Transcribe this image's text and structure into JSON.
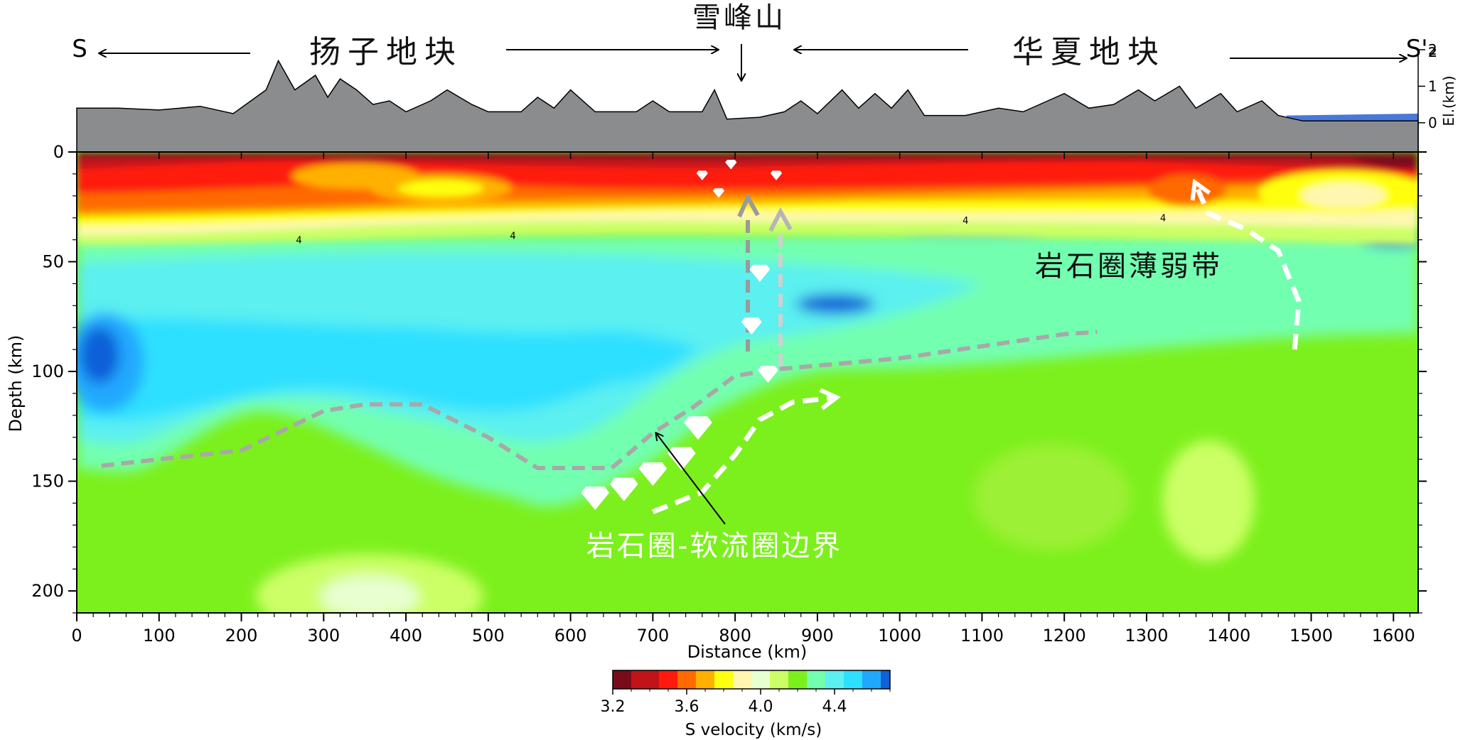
{
  "chart_data": {
    "type": "heatmap",
    "xlabel": "Distance (km)",
    "ylabel": "Depth (km)",
    "xlim": [
      0,
      1630
    ],
    "ylim": [
      210,
      0
    ],
    "x_ticks": [
      "0",
      "100",
      "200",
      "300",
      "400",
      "500",
      "600",
      "700",
      "800",
      "900",
      "1000",
      "1100",
      "1200",
      "1300",
      "1400",
      "1500",
      "1600"
    ],
    "y_ticks": [
      "0",
      "50",
      "100",
      "150",
      "200"
    ],
    "elevation_axis": {
      "label": "El.(km)",
      "ticks": [
        "2",
        "1",
        "0"
      ],
      "ylim": [
        -0.8,
        2
      ]
    },
    "elevation_profile": [
      [
        0,
        0.4
      ],
      [
        50,
        0.4
      ],
      [
        100,
        0.35
      ],
      [
        150,
        0.45
      ],
      [
        190,
        0.25
      ],
      [
        230,
        0.9
      ],
      [
        245,
        1.7
      ],
      [
        265,
        0.9
      ],
      [
        290,
        1.3
      ],
      [
        305,
        0.7
      ],
      [
        320,
        1.2
      ],
      [
        340,
        0.9
      ],
      [
        360,
        0.5
      ],
      [
        380,
        0.6
      ],
      [
        400,
        0.3
      ],
      [
        430,
        0.6
      ],
      [
        450,
        0.9
      ],
      [
        480,
        0.5
      ],
      [
        500,
        0.3
      ],
      [
        540,
        0.3
      ],
      [
        560,
        0.7
      ],
      [
        580,
        0.4
      ],
      [
        600,
        0.9
      ],
      [
        630,
        0.3
      ],
      [
        680,
        0.3
      ],
      [
        700,
        0.6
      ],
      [
        720,
        0.3
      ],
      [
        760,
        0.3
      ],
      [
        775,
        0.9
      ],
      [
        790,
        0.1
      ],
      [
        830,
        0.15
      ],
      [
        860,
        0.3
      ],
      [
        880,
        0.6
      ],
      [
        900,
        0.25
      ],
      [
        930,
        0.9
      ],
      [
        950,
        0.4
      ],
      [
        970,
        0.8
      ],
      [
        990,
        0.4
      ],
      [
        1010,
        0.9
      ],
      [
        1030,
        0.2
      ],
      [
        1080,
        0.2
      ],
      [
        1120,
        0.4
      ],
      [
        1150,
        0.3
      ],
      [
        1180,
        0.6
      ],
      [
        1200,
        0.8
      ],
      [
        1230,
        0.4
      ],
      [
        1260,
        0.5
      ],
      [
        1290,
        0.9
      ],
      [
        1310,
        0.6
      ],
      [
        1340,
        1.0
      ],
      [
        1360,
        0.4
      ],
      [
        1390,
        0.8
      ],
      [
        1410,
        0.3
      ],
      [
        1440,
        0.6
      ],
      [
        1460,
        0.2
      ],
      [
        1490,
        0.05
      ],
      [
        1560,
        0.05
      ],
      [
        1630,
        0.05
      ]
    ],
    "colorbar": {
      "label": "S velocity (km/s)",
      "ticks": [
        "3.2",
        "3.6",
        "4.0",
        "4.4"
      ],
      "range": [
        3.2,
        4.7
      ],
      "stops": [
        {
          "v": 3.2,
          "color": "#7a0c1a"
        },
        {
          "v": 3.3,
          "color": "#c0141a"
        },
        {
          "v": 3.45,
          "color": "#ff1a0d"
        },
        {
          "v": 3.55,
          "color": "#ff6a00"
        },
        {
          "v": 3.65,
          "color": "#ffb000"
        },
        {
          "v": 3.75,
          "color": "#ffff10"
        },
        {
          "v": 3.85,
          "color": "#fff7b0"
        },
        {
          "v": 3.95,
          "color": "#e8ffd0"
        },
        {
          "v": 4.05,
          "color": "#ccff66"
        },
        {
          "v": 4.15,
          "color": "#7cf01c"
        },
        {
          "v": 4.25,
          "color": "#73ffb0"
        },
        {
          "v": 4.35,
          "color": "#5cf0f0"
        },
        {
          "v": 4.45,
          "color": "#2ee0ff"
        },
        {
          "v": 4.55,
          "color": "#20a8ff"
        },
        {
          "v": 4.65,
          "color": "#1060d8"
        },
        {
          "v": 4.7,
          "color": "#0a30a0"
        }
      ]
    },
    "lab_boundary": [
      [
        30,
        143
      ],
      [
        100,
        140
      ],
      [
        200,
        136
      ],
      [
        300,
        118
      ],
      [
        350,
        115
      ],
      [
        420,
        115
      ],
      [
        500,
        130
      ],
      [
        560,
        144
      ],
      [
        650,
        144
      ],
      [
        700,
        128
      ],
      [
        750,
        116
      ],
      [
        800,
        102
      ],
      [
        850,
        99
      ],
      [
        1000,
        94
      ],
      [
        1200,
        83
      ],
      [
        1240,
        82
      ]
    ],
    "upwelling_arrows": [
      [
        [
          700,
          164
        ],
        [
          760,
          155
        ],
        [
          800,
          138
        ],
        [
          830,
          122
        ],
        [
          870,
          114
        ],
        [
          920,
          112
        ]
      ],
      [
        [
          1480,
          90
        ],
        [
          1485,
          68
        ],
        [
          1460,
          45
        ],
        [
          1420,
          35
        ],
        [
          1375,
          28
        ],
        [
          1360,
          15
        ]
      ]
    ],
    "xenoliths": [
      [
        630,
        156
      ],
      [
        665,
        152
      ],
      [
        700,
        145
      ],
      [
        735,
        138
      ],
      [
        755,
        124
      ],
      [
        840,
        100
      ],
      [
        820,
        78
      ],
      [
        830,
        54
      ],
      [
        780,
        18
      ],
      [
        760,
        10
      ],
      [
        795,
        5
      ],
      [
        850,
        10
      ]
    ],
    "crust_markers": [
      {
        "x": 270,
        "depth": 40,
        "label": "4"
      },
      {
        "x": 530,
        "depth": 38,
        "label": "4"
      },
      {
        "x": 1080,
        "depth": 31,
        "label": "4"
      },
      {
        "x": 1320,
        "depth": 30,
        "label": "4"
      }
    ]
  },
  "profile": {
    "left_end": "S",
    "right_end": "S'₂",
    "xuefeng_label": "雪峰山",
    "yangtze_label": "扬子地块",
    "cathaysia_label": "华夏地块"
  },
  "annotations": {
    "lab_label": "岩石圈-软流圈边界",
    "weak_zone_label": "岩石圈薄弱带"
  },
  "colors": {
    "topography": "#8a8c8e",
    "sea": "#4a78d8",
    "lab_line": "#a8a8a8",
    "arrow": "#ffffff"
  }
}
